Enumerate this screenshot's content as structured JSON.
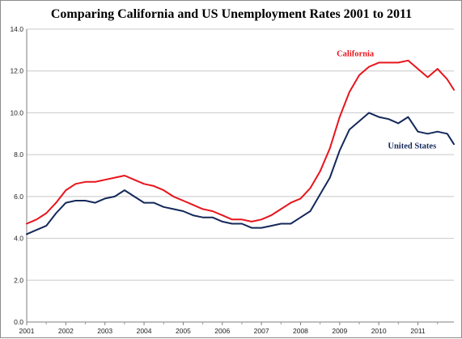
{
  "chart_data": {
    "type": "line",
    "title": "Comparing California and US Unemployment Rates 2001 to 2011",
    "xlabel": "",
    "ylabel": "",
    "ylim": [
      0,
      14
    ],
    "xlim": [
      2001.0,
      2011.92
    ],
    "y_ticks": [
      "0.0",
      "2.0",
      "4.0",
      "6.0",
      "8.0",
      "10.0",
      "12.0",
      "14.0"
    ],
    "x_ticks": [
      "2001",
      "2002",
      "2003",
      "2004",
      "2005",
      "2006",
      "2007",
      "2008",
      "2009",
      "2010",
      "2011"
    ],
    "grid": "horizontal",
    "legend": "labels inline near each line",
    "series": [
      {
        "name": "California",
        "color": "#e8141c",
        "points": [
          [
            2001.0,
            4.7
          ],
          [
            2001.25,
            4.9
          ],
          [
            2001.5,
            5.2
          ],
          [
            2001.75,
            5.7
          ],
          [
            2002.0,
            6.3
          ],
          [
            2002.25,
            6.6
          ],
          [
            2002.5,
            6.7
          ],
          [
            2002.75,
            6.7
          ],
          [
            2003.0,
            6.8
          ],
          [
            2003.25,
            6.9
          ],
          [
            2003.5,
            7.0
          ],
          [
            2003.75,
            6.8
          ],
          [
            2004.0,
            6.6
          ],
          [
            2004.25,
            6.5
          ],
          [
            2004.5,
            6.3
          ],
          [
            2004.75,
            6.0
          ],
          [
            2005.0,
            5.8
          ],
          [
            2005.25,
            5.6
          ],
          [
            2005.5,
            5.4
          ],
          [
            2005.75,
            5.3
          ],
          [
            2006.0,
            5.1
          ],
          [
            2006.25,
            4.9
          ],
          [
            2006.5,
            4.9
          ],
          [
            2006.75,
            4.8
          ],
          [
            2007.0,
            4.9
          ],
          [
            2007.25,
            5.1
          ],
          [
            2007.5,
            5.4
          ],
          [
            2007.75,
            5.7
          ],
          [
            2008.0,
            5.9
          ],
          [
            2008.25,
            6.4
          ],
          [
            2008.5,
            7.2
          ],
          [
            2008.75,
            8.3
          ],
          [
            2009.0,
            9.8
          ],
          [
            2009.25,
            11.0
          ],
          [
            2009.5,
            11.8
          ],
          [
            2009.75,
            12.2
          ],
          [
            2010.0,
            12.4
          ],
          [
            2010.25,
            12.4
          ],
          [
            2010.5,
            12.4
          ],
          [
            2010.75,
            12.5
          ],
          [
            2011.0,
            12.1
          ],
          [
            2011.25,
            11.7
          ],
          [
            2011.5,
            12.1
          ],
          [
            2011.75,
            11.6
          ],
          [
            2011.92,
            11.1
          ]
        ]
      },
      {
        "name": "United States",
        "color": "#14285a",
        "points": [
          [
            2001.0,
            4.2
          ],
          [
            2001.25,
            4.4
          ],
          [
            2001.5,
            4.6
          ],
          [
            2001.75,
            5.2
          ],
          [
            2002.0,
            5.7
          ],
          [
            2002.25,
            5.8
          ],
          [
            2002.5,
            5.8
          ],
          [
            2002.75,
            5.7
          ],
          [
            2003.0,
            5.9
          ],
          [
            2003.25,
            6.0
          ],
          [
            2003.5,
            6.3
          ],
          [
            2003.75,
            6.0
          ],
          [
            2004.0,
            5.7
          ],
          [
            2004.25,
            5.7
          ],
          [
            2004.5,
            5.5
          ],
          [
            2004.75,
            5.4
          ],
          [
            2005.0,
            5.3
          ],
          [
            2005.25,
            5.1
          ],
          [
            2005.5,
            5.0
          ],
          [
            2005.75,
            5.0
          ],
          [
            2006.0,
            4.8
          ],
          [
            2006.25,
            4.7
          ],
          [
            2006.5,
            4.7
          ],
          [
            2006.75,
            4.5
          ],
          [
            2007.0,
            4.5
          ],
          [
            2007.25,
            4.6
          ],
          [
            2007.5,
            4.7
          ],
          [
            2007.75,
            4.7
          ],
          [
            2008.0,
            5.0
          ],
          [
            2008.25,
            5.3
          ],
          [
            2008.5,
            6.1
          ],
          [
            2008.75,
            6.9
          ],
          [
            2009.0,
            8.2
          ],
          [
            2009.25,
            9.2
          ],
          [
            2009.5,
            9.6
          ],
          [
            2009.75,
            10.0
          ],
          [
            2010.0,
            9.8
          ],
          [
            2010.25,
            9.7
          ],
          [
            2010.5,
            9.5
          ],
          [
            2010.75,
            9.8
          ],
          [
            2011.0,
            9.1
          ],
          [
            2011.25,
            9.0
          ],
          [
            2011.5,
            9.1
          ],
          [
            2011.75,
            9.0
          ],
          [
            2011.92,
            8.5
          ]
        ]
      }
    ],
    "annotations": [
      {
        "text": "California",
        "x": 2009.4,
        "y": 12.7,
        "color": "#e8141c"
      },
      {
        "text": "United States",
        "x": 2010.85,
        "y": 8.3,
        "color": "#14285a"
      }
    ]
  }
}
